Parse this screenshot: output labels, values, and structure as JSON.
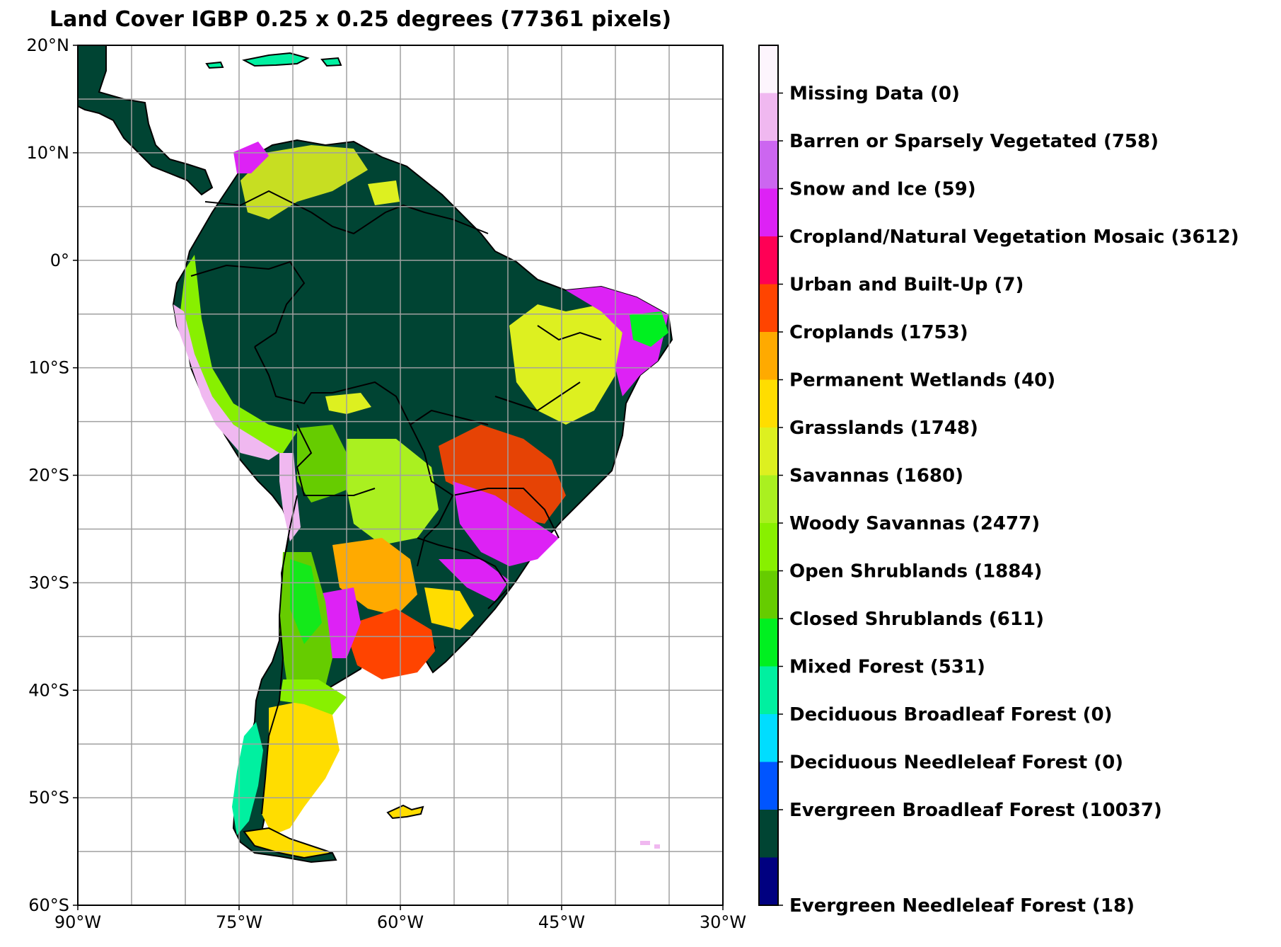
{
  "title": "Land Cover IGBP 0.25 x 0.25 degrees (77361 pixels)",
  "map": {
    "lon_range": [
      -90,
      -30
    ],
    "lat_range": [
      -60,
      20
    ],
    "grid_lon_step": 5,
    "grid_lat_step": 5,
    "grid": true,
    "lon_tick_labels": [
      "90°W",
      "75°W",
      "60°W",
      "45°W",
      "30°W"
    ],
    "lon_tick_values": [
      -90,
      -75,
      -60,
      -45,
      -30
    ],
    "lat_tick_labels": [
      "20°N",
      "10°N",
      "0°",
      "10°S",
      "20°S",
      "30°S",
      "40°S",
      "50°S",
      "60°S"
    ],
    "lat_tick_values": [
      20,
      10,
      0,
      -10,
      -20,
      -30,
      -40,
      -50,
      -60
    ]
  },
  "legend": {
    "classes": [
      {
        "label": "Missing Data (0)",
        "color": "#f0b8f0"
      },
      {
        "label": "Barren or Sparsely Vegetated (758)",
        "color": "#cc66f0"
      },
      {
        "label": "Snow and Ice (59)",
        "color": "#dd22f5"
      },
      {
        "label": "Cropland/Natural Vegetation Mosaic (3612)",
        "color": "#ff0055"
      },
      {
        "label": "Urban and Built-Up (7)",
        "color": "#ff4400"
      },
      {
        "label": "Croplands (1753)",
        "color": "#ffaa00"
      },
      {
        "label": "Permanent Wetlands (40)",
        "color": "#ffdd00"
      },
      {
        "label": "Grasslands (1748)",
        "color": "#ddf020"
      },
      {
        "label": "Savannas (1680)",
        "color": "#aaf020"
      },
      {
        "label": "Woody Savannas (2477)",
        "color": "#88f000"
      },
      {
        "label": "Open Shrublands (1884)",
        "color": "#66cc00"
      },
      {
        "label": "Closed Shrublands (611)",
        "color": "#00f020"
      },
      {
        "label": "Mixed Forest (531)",
        "color": "#00f0a0"
      },
      {
        "label": "Deciduous Broadleaf Forest (0)",
        "color": "#00ddff"
      },
      {
        "label": "Deciduous Needleleaf Forest (0)",
        "color": "#0055ff"
      },
      {
        "label": "Evergreen Broadleaf Forest (10037)",
        "color": "#004433"
      },
      {
        "label": "Evergreen Needleleaf Forest (18)",
        "color": "#000080"
      }
    ],
    "top_color": "#fdf5fd"
  }
}
